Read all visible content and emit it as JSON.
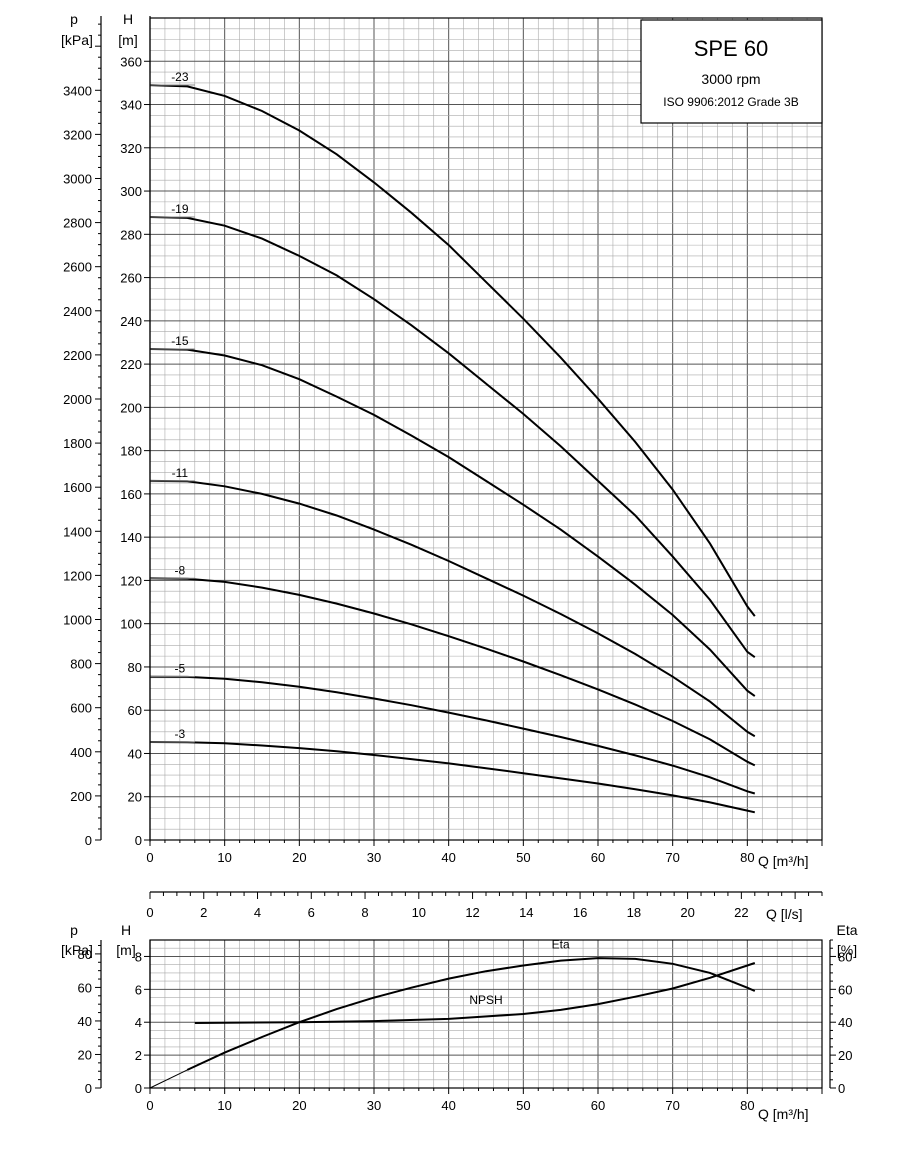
{
  "title_box": {
    "model": "SPE 60",
    "speed": "3000 rpm",
    "standard": "ISO 9906:2012 Grade 3B"
  },
  "chart_data": [
    {
      "type": "line",
      "name": "head-curves",
      "x_unit_label": "Q [m³/h]",
      "xlim": [
        0,
        90
      ],
      "x_ticks": [
        0,
        10,
        20,
        30,
        40,
        50,
        60,
        70,
        80
      ],
      "left_outer_axis": {
        "label_top": "p",
        "label_unit": "[kPa]",
        "ticks": [
          0,
          200,
          400,
          600,
          800,
          1000,
          1200,
          1400,
          1600,
          1800,
          2000,
          2200,
          2400,
          2600,
          2800,
          3000,
          3200,
          3400
        ]
      },
      "left_inner_axis": {
        "label_top": "H",
        "label_unit": "[m]",
        "ylim": [
          0,
          360
        ],
        "ticks": [
          0,
          20,
          40,
          60,
          80,
          100,
          120,
          140,
          160,
          180,
          200,
          220,
          240,
          260,
          280,
          300,
          320,
          340,
          360
        ]
      },
      "grid": true,
      "series": [
        {
          "name": "-23",
          "points": [
            [
              0,
              349
            ],
            [
              5,
              348.4
            ],
            [
              10,
              344
            ],
            [
              15,
              337
            ],
            [
              20,
              328
            ],
            [
              25,
              317
            ],
            [
              30,
              304
            ],
            [
              35,
              290
            ],
            [
              40,
              275
            ],
            [
              45,
              258
            ],
            [
              50,
              241
            ],
            [
              55,
              223
            ],
            [
              60,
              204
            ],
            [
              65,
              184
            ],
            [
              70,
              162
            ],
            [
              75,
              137
            ],
            [
              80,
              108
            ],
            [
              81,
              103.5
            ]
          ]
        },
        {
          "name": "-19",
          "points": [
            [
              0,
              288
            ],
            [
              5,
              287.6
            ],
            [
              10,
              284
            ],
            [
              15,
              278
            ],
            [
              20,
              270
            ],
            [
              25,
              261
            ],
            [
              30,
              250
            ],
            [
              35,
              238
            ],
            [
              40,
              225
            ],
            [
              45,
              211
            ],
            [
              50,
              197
            ],
            [
              55,
              182
            ],
            [
              60,
              166
            ],
            [
              65,
              150
            ],
            [
              70,
              131
            ],
            [
              75,
              111
            ],
            [
              80,
              87
            ],
            [
              81,
              84.5
            ]
          ]
        },
        {
          "name": "-15",
          "points": [
            [
              0,
              227
            ],
            [
              5,
              226.7
            ],
            [
              10,
              224
            ],
            [
              15,
              219.5
            ],
            [
              20,
              213
            ],
            [
              25,
              205
            ],
            [
              30,
              196.5
            ],
            [
              35,
              187
            ],
            [
              40,
              177
            ],
            [
              45,
              166
            ],
            [
              50,
              155
            ],
            [
              55,
              143.5
            ],
            [
              60,
              131
            ],
            [
              65,
              118
            ],
            [
              70,
              104
            ],
            [
              75,
              88
            ],
            [
              80,
              69
            ],
            [
              81,
              66.5
            ]
          ]
        },
        {
          "name": "-11",
          "points": [
            [
              0,
              166
            ],
            [
              5,
              165.8
            ],
            [
              10,
              163.5
            ],
            [
              15,
              160
            ],
            [
              20,
              155.5
            ],
            [
              25,
              150
            ],
            [
              30,
              143.5
            ],
            [
              35,
              136.5
            ],
            [
              40,
              129
            ],
            [
              45,
              121
            ],
            [
              50,
              113
            ],
            [
              55,
              104.5
            ],
            [
              60,
              95.5
            ],
            [
              65,
              86
            ],
            [
              70,
              75.5
            ],
            [
              75,
              64
            ],
            [
              80,
              50
            ],
            [
              81,
              48
            ]
          ]
        },
        {
          "name": "-8",
          "points": [
            [
              0,
              121
            ],
            [
              5,
              120.8
            ],
            [
              10,
              119.3
            ],
            [
              15,
              116.7
            ],
            [
              20,
              113.3
            ],
            [
              25,
              109.3
            ],
            [
              30,
              104.7
            ],
            [
              35,
              99.7
            ],
            [
              40,
              94.2
            ],
            [
              45,
              88.5
            ],
            [
              50,
              82.5
            ],
            [
              55,
              76.2
            ],
            [
              60,
              69.6
            ],
            [
              65,
              62.6
            ],
            [
              70,
              55
            ],
            [
              75,
              46.5
            ],
            [
              80,
              36.2
            ],
            [
              81,
              34.5
            ]
          ]
        },
        {
          "name": "-5",
          "points": [
            [
              0,
              75.5
            ],
            [
              5,
              75.4
            ],
            [
              10,
              74.5
            ],
            [
              15,
              72.9
            ],
            [
              20,
              70.8
            ],
            [
              25,
              68.3
            ],
            [
              30,
              65.4
            ],
            [
              35,
              62.3
            ],
            [
              40,
              58.9
            ],
            [
              45,
              55.3
            ],
            [
              50,
              51.5
            ],
            [
              55,
              47.6
            ],
            [
              60,
              43.5
            ],
            [
              65,
              39.1
            ],
            [
              70,
              34.4
            ],
            [
              75,
              29
            ],
            [
              80,
              22.5
            ],
            [
              81,
              21.5
            ]
          ]
        },
        {
          "name": "-3",
          "points": [
            [
              0,
              45.3
            ],
            [
              5,
              45.2
            ],
            [
              10,
              44.7
            ],
            [
              15,
              43.7
            ],
            [
              20,
              42.5
            ],
            [
              25,
              41
            ],
            [
              30,
              39.3
            ],
            [
              35,
              37.4
            ],
            [
              40,
              35.4
            ],
            [
              45,
              33.2
            ],
            [
              50,
              30.9
            ],
            [
              55,
              28.5
            ],
            [
              60,
              26.1
            ],
            [
              65,
              23.5
            ],
            [
              70,
              20.6
            ],
            [
              75,
              17.4
            ],
            [
              80,
              13.6
            ],
            [
              81,
              12.8
            ]
          ]
        }
      ]
    },
    {
      "type": "axis",
      "name": "flow-ls-axis",
      "x_unit_label": "Q [l/s]",
      "xlim": [
        0,
        25
      ],
      "x_ticks": [
        0,
        2,
        4,
        6,
        8,
        10,
        12,
        14,
        16,
        18,
        20,
        22
      ]
    },
    {
      "type": "line",
      "name": "npsh-eta-curves",
      "x_unit_label": "Q [m³/h]",
      "xlim": [
        0,
        90
      ],
      "x_ticks": [
        0,
        10,
        20,
        30,
        40,
        50,
        60,
        70,
        80
      ],
      "left_outer_axis": {
        "label_top": "p",
        "label_unit": "[kPa]",
        "ticks": [
          0,
          20,
          40,
          60,
          80
        ]
      },
      "left_inner_axis": {
        "label_top": "H",
        "label_unit": "[m]",
        "ylim": [
          0,
          9
        ],
        "ticks": [
          0,
          2,
          4,
          6,
          8
        ]
      },
      "right_axis": {
        "label_top": "Eta",
        "label_unit": "[%]",
        "ylim": [
          0,
          90
        ],
        "ticks": [
          0,
          20,
          40,
          60,
          80
        ]
      },
      "grid": true,
      "series": [
        {
          "name": "Eta",
          "axis": "right",
          "points": [
            [
              0,
              0
            ],
            [
              5,
              11
            ],
            [
              10,
              21.5
            ],
            [
              15,
              31
            ],
            [
              20,
              40
            ],
            [
              25,
              48
            ],
            [
              30,
              55
            ],
            [
              35,
              61
            ],
            [
              40,
              66.5
            ],
            [
              45,
              71
            ],
            [
              50,
              74.5
            ],
            [
              55,
              77.5
            ],
            [
              60,
              79
            ],
            [
              65,
              78.5
            ],
            [
              70,
              75.5
            ],
            [
              75,
              70
            ],
            [
              80,
              61
            ],
            [
              81,
              59
            ]
          ]
        },
        {
          "name": "NPSH",
          "axis": "left",
          "points": [
            [
              6,
              3.95
            ],
            [
              10,
              3.97
            ],
            [
              20,
              4.0
            ],
            [
              30,
              4.07
            ],
            [
              40,
              4.2
            ],
            [
              50,
              4.5
            ],
            [
              55,
              4.75
            ],
            [
              60,
              5.1
            ],
            [
              65,
              5.55
            ],
            [
              70,
              6.05
            ],
            [
              75,
              6.7
            ],
            [
              80,
              7.45
            ],
            [
              81,
              7.6
            ]
          ]
        }
      ]
    }
  ]
}
